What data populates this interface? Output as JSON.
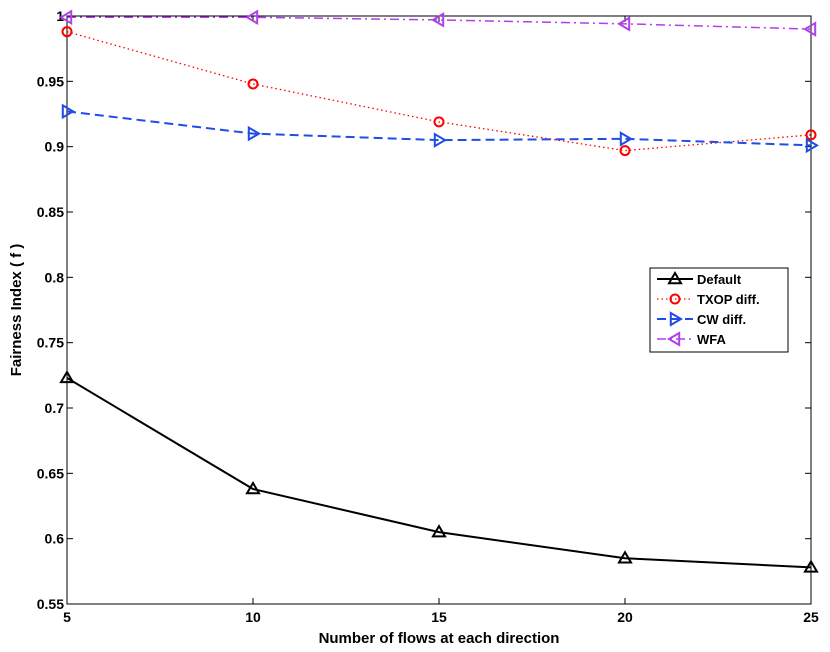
{
  "chart_data": {
    "type": "line",
    "title": "",
    "xlabel": "Number of flows at each direction",
    "ylabel": "Fairness Index ( f )",
    "xlim": [
      5,
      25
    ],
    "ylim": [
      0.55,
      1
    ],
    "x": [
      5,
      10,
      15,
      20,
      25
    ],
    "xticks": [
      "5",
      "10",
      "15",
      "20",
      "25"
    ],
    "yticks": [
      "0.55",
      "0.6",
      "0.65",
      "0.7",
      "0.75",
      "0.8",
      "0.85",
      "0.9",
      "0.95",
      "1"
    ],
    "legend_position": "right",
    "series": [
      {
        "name": "Default",
        "values": [
          0.723,
          0.638,
          0.605,
          0.585,
          0.578
        ],
        "color": "#000000",
        "line": "solid",
        "marker": "triangle-up"
      },
      {
        "name": "TXOP diff.",
        "values": [
          0.988,
          0.948,
          0.919,
          0.897,
          0.909
        ],
        "color": "#ff0000",
        "line": "dotted",
        "marker": "circle"
      },
      {
        "name": "CW diff.",
        "values": [
          0.927,
          0.91,
          0.905,
          0.906,
          0.901
        ],
        "color": "#1f4de6",
        "line": "dashed",
        "marker": "triangle-right"
      },
      {
        "name": "WFA",
        "values": [
          0.999,
          0.999,
          0.997,
          0.994,
          0.99
        ],
        "color": "#b040e8",
        "line": "dashdot",
        "marker": "triangle-left"
      }
    ]
  }
}
